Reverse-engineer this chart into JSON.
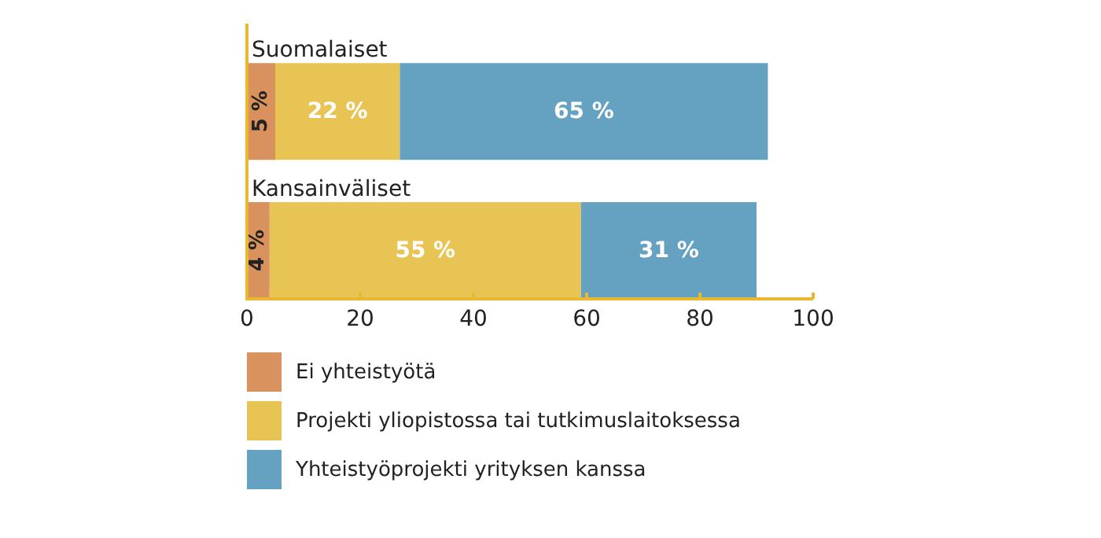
{
  "chart_data": {
    "type": "bar",
    "orientation": "horizontal",
    "stacked": true,
    "categories": [
      "Suomalaiset",
      "Kansainväliset"
    ],
    "series": [
      {
        "name": "Ei yhteistyötä",
        "color": "#d9915e",
        "values": [
          5,
          4
        ],
        "value_labels": [
          "5 %",
          "4 %"
        ]
      },
      {
        "name": "Projekti yliopistossa tai tutkimuslaitoksessa",
        "color": "#e8c454",
        "values": [
          22,
          55
        ],
        "value_labels": [
          "22 %",
          "55 %"
        ]
      },
      {
        "name": "Yhteistyöprojekti yrityksen kanssa",
        "color": "#65a1c0",
        "values": [
          65,
          31
        ],
        "value_labels": [
          "65 %",
          "31 %"
        ]
      }
    ],
    "xlim": [
      0,
      100
    ],
    "xticks": [
      0,
      20,
      40,
      60,
      80,
      100
    ],
    "grid": false,
    "legend": "bottom"
  }
}
